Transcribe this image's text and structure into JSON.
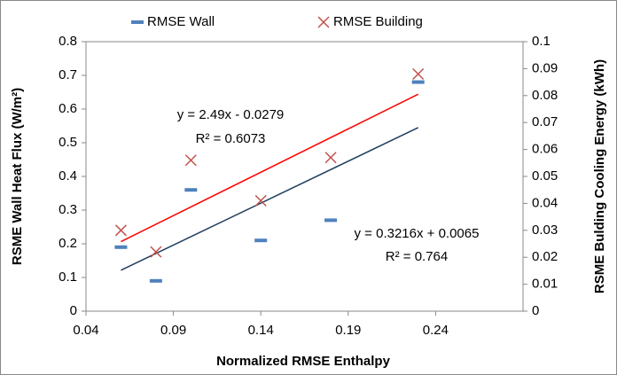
{
  "chart_data": {
    "type": "scatter",
    "x_label": "Normalized RMSE Enthalpy",
    "y_label": "RSME Wall  Heat Flux  (W/m²)",
    "y2_label": "RSME Bulding Cooling Energy (kWh)",
    "x": [
      0.06,
      0.08,
      0.1,
      0.14,
      0.18,
      0.23
    ],
    "series": [
      {
        "name": "RMSE Wall",
        "color": "#4f81bd",
        "marker": "dash",
        "values": [
          0.19,
          0.09,
          0.36,
          0.21,
          0.27,
          0.68
        ]
      },
      {
        "name": "RMSE Building",
        "color": "#c0504d",
        "marker": "x",
        "axis": "y2",
        "values": [
          0.03,
          0.022,
          0.056,
          0.041,
          0.057,
          0.088
        ]
      }
    ],
    "trendlines": [
      {
        "color": "#1f3f5f",
        "x": [
          0.06,
          0.23
        ],
        "values": [
          0.1215,
          0.5448
        ],
        "equation": "y = 2.49x - 0.0279",
        "r_squared": "R² = 0.6073"
      },
      {
        "color": "#ff0000",
        "axis": "y2",
        "x": [
          0.06,
          0.23
        ],
        "values": [
          0.0258,
          0.0805
        ],
        "equation": "y = 0.3216x  + 0.0065",
        "r_squared": "R² = 0.764"
      }
    ],
    "xlim": [
      0.04,
      0.29
    ],
    "xticks": [
      0.04,
      0.09,
      0.14,
      0.19,
      0.24
    ],
    "ylim": [
      0,
      0.8
    ],
    "yticks": [
      0,
      0.1,
      0.2,
      0.3,
      0.4,
      0.5,
      0.6,
      0.7,
      0.8
    ],
    "y2lim": [
      0,
      0.1
    ],
    "y2ticks": [
      0,
      0.01,
      0.02,
      0.03,
      0.04,
      0.05,
      0.06,
      0.07,
      0.08,
      0.09,
      0.1
    ],
    "legend": "top"
  }
}
